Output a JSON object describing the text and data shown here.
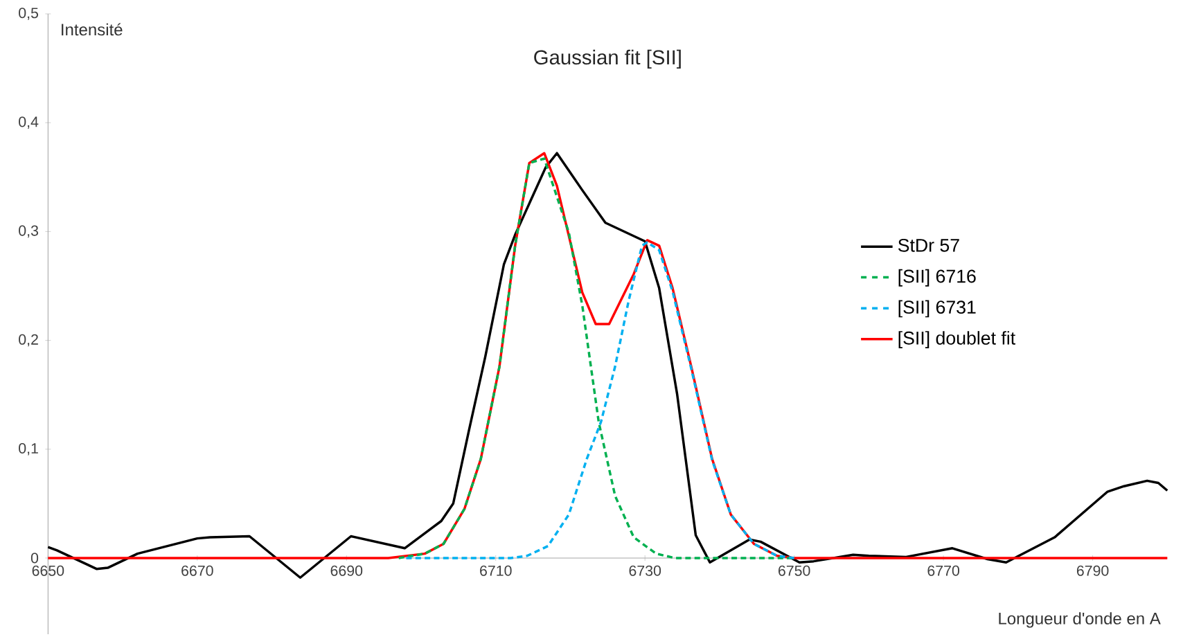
{
  "chart_data": {
    "type": "line",
    "title": "Gaussian fit [SII]",
    "xlabel": "Longueur d'onde en A",
    "ylabel": "Intensité",
    "xlim": [
      6650,
      6800
    ],
    "ylim": [
      -0.07,
      0.5
    ],
    "xticks": [
      6650,
      6670,
      6690,
      6710,
      6730,
      6750,
      6770,
      6790
    ],
    "yticks": [
      {
        "value": 0,
        "label": "0"
      },
      {
        "value": 0.1,
        "label": "0,1"
      },
      {
        "value": 0.2,
        "label": "0,2"
      },
      {
        "value": 0.3,
        "label": "0,3"
      },
      {
        "value": 0.4,
        "label": "0,4"
      },
      {
        "value": 0.5,
        "label": "0,5"
      }
    ],
    "grid": false,
    "legend": "right",
    "marker": "none",
    "series": [
      {
        "name": "StDr 57",
        "color": "#000000",
        "line_style": "solid",
        "x": [
          6650,
          6651.2,
          6656.5,
          6658,
          6662,
          6666,
          6670,
          6671.7,
          6677,
          6683.8,
          6690.6,
          6697.8,
          6702.7,
          6704.3,
          6706.4,
          6708.6,
          6711.1,
          6712.6,
          6716.7,
          6718.2,
          6721.6,
          6724.7,
          6730,
          6731.9,
          6734.3,
          6736.8,
          6738.7,
          6744,
          6745.5,
          6750.7,
          6752.6,
          6757.9,
          6760,
          6765,
          6771.2,
          6775.9,
          6778.4,
          6784.9,
          6792,
          6794.2,
          6797.3,
          6798.8,
          6800
        ],
        "values": [
          0.01,
          0.007,
          -0.01,
          -0.009,
          0.004,
          0.011,
          0.018,
          0.019,
          0.02,
          -0.018,
          0.02,
          0.009,
          0.034,
          0.05,
          0.117,
          0.185,
          0.27,
          0.297,
          0.359,
          0.372,
          0.338,
          0.308,
          0.291,
          0.248,
          0.151,
          0.021,
          -0.004,
          0.017,
          0.015,
          -0.004,
          -0.003,
          0.003,
          0.002,
          0.001,
          0.009,
          -0.001,
          -0.004,
          0.019,
          0.061,
          0.066,
          0.071,
          0.069,
          0.062
        ]
      },
      {
        "name": "[SII] 6716",
        "color": "#00b050",
        "line_style": "dashed",
        "x": [
          6697,
          6700.5,
          6703,
          6705.8,
          6708,
          6710.5,
          6712.6,
          6714.5,
          6716.5,
          6719.8,
          6721.6,
          6723.8,
          6726,
          6728.5,
          6731.5,
          6734,
          6750
        ],
        "values": [
          0,
          0.004,
          0.013,
          0.045,
          0.091,
          0.176,
          0.287,
          0.363,
          0.367,
          0.299,
          0.232,
          0.125,
          0.057,
          0.019,
          0.004,
          0,
          0
        ]
      },
      {
        "name": "[SII] 6731",
        "color": "#00b0f0",
        "line_style": "dashed",
        "x": [
          6698,
          6712,
          6714.2,
          6717,
          6719.8,
          6722.2,
          6724.1,
          6726,
          6727.8,
          6729.6,
          6730.3,
          6731.9,
          6733.7,
          6736.2,
          6739,
          6741.5,
          6744.6,
          6747.7,
          6750
        ],
        "values": [
          0,
          0,
          0.002,
          0.011,
          0.04,
          0.091,
          0.125,
          0.176,
          0.236,
          0.287,
          0.29,
          0.283,
          0.245,
          0.174,
          0.09,
          0.04,
          0.013,
          0.002,
          0
        ]
      },
      {
        "name": "[SII] doublet fit",
        "color": "#ff0000",
        "line_style": "solid",
        "x": [
          6650,
          6695.6,
          6700.5,
          6703,
          6705.8,
          6708,
          6710.5,
          6712.6,
          6714.5,
          6716.5,
          6718.2,
          6721.6,
          6723.4,
          6725.2,
          6728.5,
          6730.3,
          6731.9,
          6733.7,
          6736.2,
          6739,
          6741.5,
          6744.6,
          6747.7,
          6750,
          6800
        ],
        "values": [
          0,
          0,
          0.004,
          0.013,
          0.045,
          0.091,
          0.176,
          0.287,
          0.363,
          0.372,
          0.342,
          0.244,
          0.215,
          0.215,
          0.261,
          0.292,
          0.287,
          0.248,
          0.176,
          0.091,
          0.04,
          0.013,
          0.002,
          0,
          0
        ]
      }
    ]
  }
}
